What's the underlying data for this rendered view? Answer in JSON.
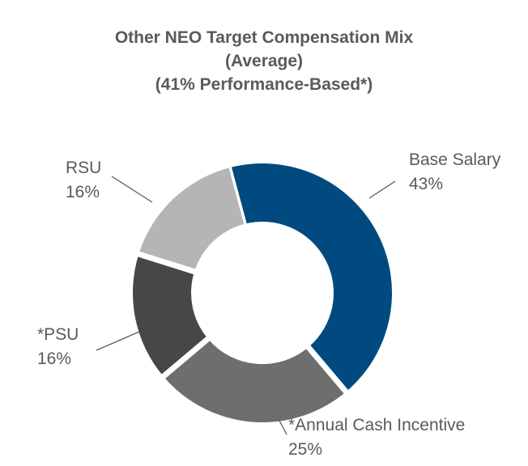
{
  "chart_data": {
    "type": "pie",
    "style": "donut",
    "title_lines": [
      "Other NEO Target Compensation Mix",
      "(Average)",
      "(41% Performance-Based*)"
    ],
    "slices": [
      {
        "label": "Base Salary",
        "value": 43,
        "value_label": "43%",
        "color": "#004a80"
      },
      {
        "label": "*Annual Cash Incentive",
        "value": 25,
        "value_label": "25%",
        "color": "#6e6e6e"
      },
      {
        "label": "*PSU",
        "value": 16,
        "value_label": "16%",
        "color": "#474747"
      },
      {
        "label": "RSU",
        "value": 16,
        "value_label": "16%",
        "color": "#b5b5b5"
      }
    ],
    "legend": "none"
  }
}
